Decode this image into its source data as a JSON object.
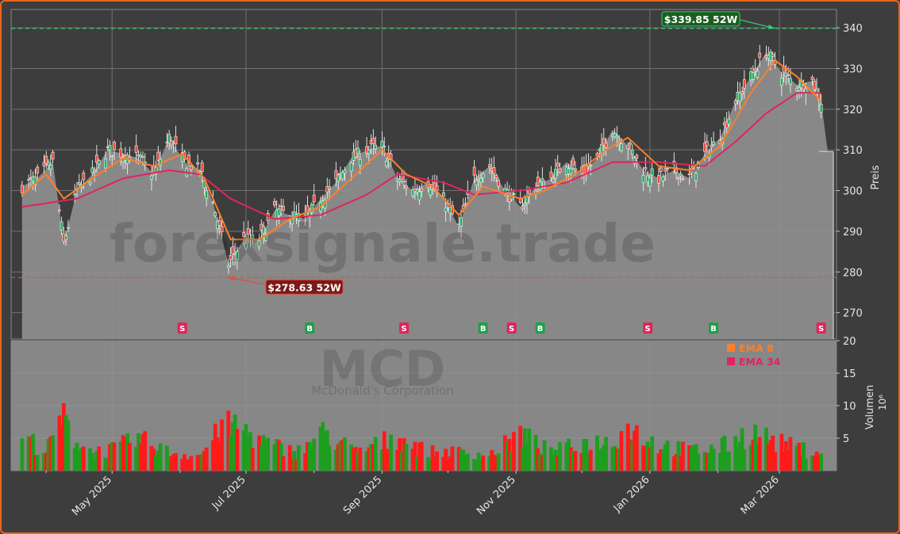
{
  "chart_data": {
    "type": "candlestick",
    "ticker": "MCD",
    "company": "McDonald's Corporation",
    "watermark": "forexsignale.trade",
    "ylabel": "Preis",
    "vol_label": "Volumen",
    "vol_unit": "10⁶",
    "ylim": [
      263.5,
      344.5
    ],
    "vol_ylim": [
      0,
      20
    ],
    "y_ticks": [
      270,
      280,
      290,
      300,
      310,
      320,
      330,
      340
    ],
    "vol_ticks": [
      5,
      10,
      15,
      20
    ],
    "x_ticks": [
      {
        "date": "2025-05-01",
        "label": "May 2025"
      },
      {
        "date": "2025-07-01",
        "label": "Jul 2025"
      },
      {
        "date": "2025-09-01",
        "label": "Sep 2025"
      },
      {
        "date": "2025-11-01",
        "label": "Nov 2025"
      },
      {
        "date": "2026-01-01",
        "label": "Jan 2026"
      },
      {
        "date": "2026-03-01",
        "label": "Mar 2026"
      }
    ],
    "high_52w": {
      "value": 339.85,
      "label": "$339.85 52W",
      "date": "2026-02-27"
    },
    "low_52w": {
      "value": 278.63,
      "label": "$278.63 52W",
      "date": "2025-06-23"
    },
    "legend": [
      {
        "label": "EMA 8",
        "color": "#ff7f2a"
      },
      {
        "label": "EMA 34",
        "color": "#e0245e"
      }
    ],
    "signals": [
      {
        "type": "S",
        "date": "2025-06-02"
      },
      {
        "type": "B",
        "date": "2025-07-30"
      },
      {
        "type": "S",
        "date": "2025-09-11"
      },
      {
        "type": "B",
        "date": "2025-10-17"
      },
      {
        "type": "S",
        "date": "2025-10-30"
      },
      {
        "type": "B",
        "date": "2025-11-12"
      },
      {
        "type": "S",
        "date": "2025-12-31"
      },
      {
        "type": "B",
        "date": "2026-01-30"
      },
      {
        "type": "S",
        "date": "2026-03-20"
      }
    ],
    "close_series": [
      [
        "2025-03-21",
        301
      ],
      [
        "2025-03-28",
        303
      ],
      [
        "2025-04-04",
        307
      ],
      [
        "2025-04-09",
        287
      ],
      [
        "2025-04-15",
        300
      ],
      [
        "2025-04-22",
        304
      ],
      [
        "2025-04-29",
        310
      ],
      [
        "2025-05-06",
        309
      ],
      [
        "2025-05-13",
        308
      ],
      [
        "2025-05-20",
        304
      ],
      [
        "2025-05-27",
        313
      ],
      [
        "2025-06-03",
        307
      ],
      [
        "2025-06-10",
        305
      ],
      [
        "2025-06-16",
        297
      ],
      [
        "2025-06-23",
        282
      ],
      [
        "2025-06-30",
        288
      ],
      [
        "2025-07-07",
        288
      ],
      [
        "2025-07-14",
        295
      ],
      [
        "2025-07-21",
        294
      ],
      [
        "2025-07-28",
        293
      ],
      [
        "2025-08-04",
        298
      ],
      [
        "2025-08-11",
        302
      ],
      [
        "2025-08-18",
        308
      ],
      [
        "2025-08-25",
        310
      ],
      [
        "2025-09-01",
        311
      ],
      [
        "2025-09-08",
        303
      ],
      [
        "2025-09-15",
        300
      ],
      [
        "2025-09-22",
        302
      ],
      [
        "2025-09-29",
        298
      ],
      [
        "2025-10-06",
        291
      ],
      [
        "2025-10-13",
        303
      ],
      [
        "2025-10-20",
        306
      ],
      [
        "2025-10-27",
        300
      ],
      [
        "2025-11-03",
        296
      ],
      [
        "2025-11-10",
        301
      ],
      [
        "2025-11-17",
        303
      ],
      [
        "2025-11-24",
        307
      ],
      [
        "2025-12-01",
        304
      ],
      [
        "2025-12-08",
        308
      ],
      [
        "2025-12-15",
        315
      ],
      [
        "2025-12-22",
        311
      ],
      [
        "2025-12-29",
        305
      ],
      [
        "2026-01-05",
        303
      ],
      [
        "2026-01-12",
        305
      ],
      [
        "2026-01-19",
        303
      ],
      [
        "2026-01-26",
        309
      ],
      [
        "2026-02-02",
        313
      ],
      [
        "2026-02-09",
        322
      ],
      [
        "2026-02-16",
        328
      ],
      [
        "2026-02-23",
        334
      ],
      [
        "2026-03-02",
        329
      ],
      [
        "2026-03-09",
        326
      ],
      [
        "2026-03-16",
        327
      ],
      [
        "2026-03-20",
        322
      ],
      [
        "2026-03-23",
        309.6
      ]
    ],
    "ema8_series": [
      [
        "2025-03-21",
        299
      ],
      [
        "2025-04-01",
        304
      ],
      [
        "2025-04-09",
        298
      ],
      [
        "2025-04-22",
        303
      ],
      [
        "2025-05-06",
        308
      ],
      [
        "2025-05-20",
        306
      ],
      [
        "2025-06-02",
        309
      ],
      [
        "2025-06-12",
        303
      ],
      [
        "2025-06-24",
        288
      ],
      [
        "2025-07-07",
        288
      ],
      [
        "2025-07-21",
        293
      ],
      [
        "2025-08-04",
        296
      ],
      [
        "2025-08-18",
        303
      ],
      [
        "2025-09-01",
        310
      ],
      [
        "2025-09-12",
        304
      ],
      [
        "2025-09-24",
        301
      ],
      [
        "2025-10-06",
        294
      ],
      [
        "2025-10-17",
        301
      ],
      [
        "2025-11-03",
        298
      ],
      [
        "2025-11-14",
        300
      ],
      [
        "2025-11-28",
        304
      ],
      [
        "2025-12-12",
        310
      ],
      [
        "2025-12-22",
        313
      ],
      [
        "2026-01-05",
        306
      ],
      [
        "2026-01-19",
        305
      ],
      [
        "2026-02-02",
        311
      ],
      [
        "2026-02-16",
        324
      ],
      [
        "2026-02-27",
        332
      ],
      [
        "2026-03-09",
        328
      ],
      [
        "2026-03-20",
        322
      ]
    ],
    "ema34_series": [
      [
        "2025-03-21",
        296
      ],
      [
        "2025-04-15",
        298
      ],
      [
        "2025-05-06",
        303
      ],
      [
        "2025-05-27",
        305
      ],
      [
        "2025-06-10",
        304
      ],
      [
        "2025-06-24",
        298
      ],
      [
        "2025-07-14",
        293
      ],
      [
        "2025-08-04",
        294
      ],
      [
        "2025-08-25",
        299
      ],
      [
        "2025-09-08",
        304
      ],
      [
        "2025-09-29",
        302
      ],
      [
        "2025-10-13",
        299
      ],
      [
        "2025-11-03",
        300
      ],
      [
        "2025-11-24",
        302
      ],
      [
        "2025-12-15",
        307
      ],
      [
        "2026-01-05",
        307
      ],
      [
        "2026-01-26",
        306
      ],
      [
        "2026-02-09",
        312
      ],
      [
        "2026-02-23",
        319
      ],
      [
        "2026-03-09",
        324
      ],
      [
        "2026-03-20",
        324
      ]
    ],
    "volume_series": [
      [
        "2025-03-21",
        6
      ],
      [
        "2025-04-01",
        3
      ],
      [
        "2025-04-08",
        8.8
      ],
      [
        "2025-04-15",
        5
      ],
      [
        "2025-04-22",
        3
      ],
      [
        "2025-05-01",
        3.5
      ],
      [
        "2025-05-13",
        5.2
      ],
      [
        "2025-05-27",
        3
      ],
      [
        "2025-06-10",
        2.5
      ],
      [
        "2025-06-20",
        7
      ],
      [
        "2025-06-27",
        7.4
      ],
      [
        "2025-07-10",
        4.5
      ],
      [
        "2025-07-24",
        3
      ],
      [
        "2025-08-06",
        6.3
      ],
      [
        "2025-08-20",
        3
      ],
      [
        "2025-09-08",
        5.6
      ],
      [
        "2025-09-22",
        3
      ],
      [
        "2025-10-06",
        3
      ],
      [
        "2025-10-20",
        2.5
      ],
      [
        "2025-11-03",
        6
      ],
      [
        "2025-11-17",
        3
      ],
      [
        "2025-12-01",
        4.5
      ],
      [
        "2025-12-15",
        4.8
      ],
      [
        "2025-12-22",
        7.1
      ],
      [
        "2026-01-05",
        4.3
      ],
      [
        "2026-01-19",
        3.3
      ],
      [
        "2026-02-02",
        3.8
      ],
      [
        "2026-02-16",
        6.4
      ],
      [
        "2026-03-02",
        4.4
      ],
      [
        "2026-03-16",
        3.1
      ]
    ]
  }
}
